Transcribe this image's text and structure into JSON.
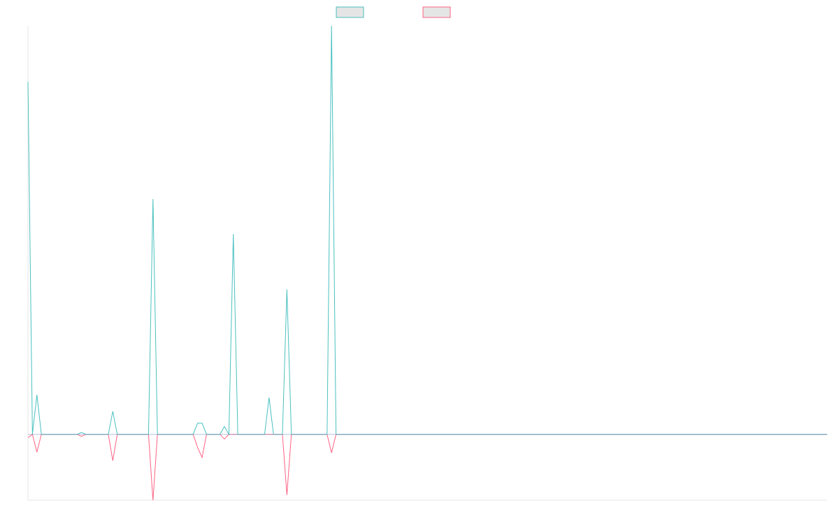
{
  "colors": {
    "series_a": "#4bc0c0",
    "series_b": "#ff6384",
    "axis": "#e6e6e6",
    "overlap": "#7a8fbf",
    "legend_fill": "#e5e5e5"
  },
  "chart_data": {
    "type": "line",
    "title": "",
    "xlabel": "",
    "ylabel": "",
    "legend": {
      "position": "top-center",
      "entries": [
        "",
        ""
      ]
    },
    "grid": false,
    "point_count": 180,
    "ylim": [
      -1,
      6.2
    ],
    "series": [
      {
        "color": "#4bc0c0",
        "peaks": [
          {
            "i": 0,
            "v": 5.35
          },
          {
            "i": 1,
            "v": 0
          },
          {
            "i": 2,
            "v": 0.6
          },
          {
            "i": 3,
            "v": 0
          },
          {
            "i": 11,
            "v": 0
          },
          {
            "i": 12,
            "v": 0.03
          },
          {
            "i": 13,
            "v": 0
          },
          {
            "i": 18,
            "v": 0
          },
          {
            "i": 19,
            "v": 0.35
          },
          {
            "i": 20,
            "v": 0
          },
          {
            "i": 27,
            "v": 0
          },
          {
            "i": 28,
            "v": 3.57
          },
          {
            "i": 29,
            "v": 0
          },
          {
            "i": 37,
            "v": 0
          },
          {
            "i": 38,
            "v": 0.17
          },
          {
            "i": 39,
            "v": 0.17
          },
          {
            "i": 40,
            "v": 0
          },
          {
            "i": 43,
            "v": 0
          },
          {
            "i": 44,
            "v": 0.12
          },
          {
            "i": 45,
            "v": 0
          },
          {
            "i": 46,
            "v": 3.04
          },
          {
            "i": 47,
            "v": 0
          },
          {
            "i": 53,
            "v": 0
          },
          {
            "i": 54,
            "v": 0.56
          },
          {
            "i": 55,
            "v": 0
          },
          {
            "i": 57,
            "v": 0
          },
          {
            "i": 58,
            "v": 2.2
          },
          {
            "i": 59,
            "v": 0
          },
          {
            "i": 67,
            "v": 0
          },
          {
            "i": 68,
            "v": 6.2
          },
          {
            "i": 69,
            "v": 0
          }
        ]
      },
      {
        "color": "#ff6384",
        "peaks": [
          {
            "i": 0,
            "v": -0.05
          },
          {
            "i": 1,
            "v": 0
          },
          {
            "i": 2,
            "v": -0.27
          },
          {
            "i": 3,
            "v": 0
          },
          {
            "i": 11,
            "v": 0
          },
          {
            "i": 12,
            "v": -0.03
          },
          {
            "i": 13,
            "v": 0
          },
          {
            "i": 18,
            "v": 0
          },
          {
            "i": 19,
            "v": -0.4
          },
          {
            "i": 20,
            "v": 0
          },
          {
            "i": 27,
            "v": 0
          },
          {
            "i": 28,
            "v": -1
          },
          {
            "i": 29,
            "v": 0
          },
          {
            "i": 37,
            "v": 0
          },
          {
            "i": 38,
            "v": -0.2
          },
          {
            "i": 39,
            "v": -0.35
          },
          {
            "i": 40,
            "v": 0
          },
          {
            "i": 43,
            "v": 0
          },
          {
            "i": 44,
            "v": -0.07
          },
          {
            "i": 45,
            "v": 0
          },
          {
            "i": 57,
            "v": 0
          },
          {
            "i": 58,
            "v": -0.92
          },
          {
            "i": 59,
            "v": 0
          },
          {
            "i": 67,
            "v": 0
          },
          {
            "i": 68,
            "v": -0.28
          },
          {
            "i": 69,
            "v": 0
          }
        ]
      }
    ]
  }
}
